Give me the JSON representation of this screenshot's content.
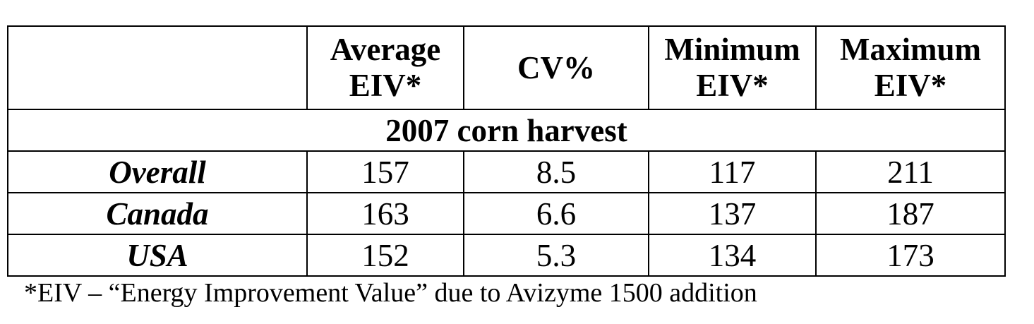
{
  "table": {
    "headers": [
      {
        "line1": "",
        "line2": ""
      },
      {
        "line1": "Average",
        "line2": "EIV*"
      },
      {
        "line1": "CV%",
        "line2": ""
      },
      {
        "line1": "Minimum",
        "line2": "EIV*"
      },
      {
        "line1": "Maximum",
        "line2": "EIV*"
      }
    ],
    "section_title": "2007 corn harvest",
    "rows": [
      {
        "label": "Overall",
        "average": "157",
        "cv": "8.5",
        "minimum": "117",
        "maximum": "211"
      },
      {
        "label": "Canada",
        "average": "163",
        "cv": "6.6",
        "minimum": "137",
        "maximum": "187"
      },
      {
        "label": "USA",
        "average": "152",
        "cv": "5.3",
        "minimum": "134",
        "maximum": "173"
      }
    ]
  },
  "footnote": "*EIV – “Energy Improvement Value” due to Avizyme 1500 addition"
}
